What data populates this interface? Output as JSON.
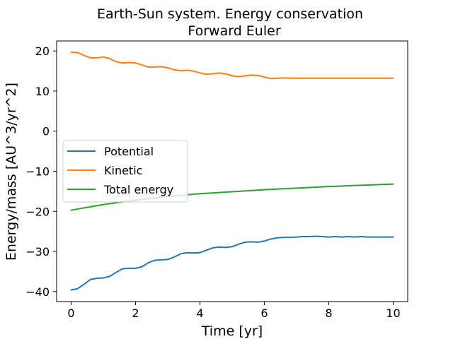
{
  "chart_data": {
    "type": "line",
    "title": "Earth-Sun system. Energy conservation",
    "subtitle": "Forward Euler",
    "xlabel": "Time [yr]",
    "ylabel": "Energy/mass [AU^3/yr^2]",
    "xlim": [
      -0.45,
      10.45
    ],
    "ylim": [
      -42.5,
      22.5
    ],
    "xticks": [
      0,
      2,
      4,
      6,
      8,
      10
    ],
    "xtick_labels": [
      "0",
      "2",
      "4",
      "6",
      "8",
      "10"
    ],
    "yticks": [
      20,
      10,
      0,
      -10,
      -20,
      -30,
      -40
    ],
    "ytick_labels": [
      "20",
      "10",
      "0",
      "−10",
      "−20",
      "−30",
      "−40"
    ],
    "grid": false,
    "legend_position": "center-left",
    "series": [
      {
        "name": "Potential",
        "color": "#1f77b4",
        "x": [
          0,
          0.2,
          0.4,
          0.6,
          0.8,
          1.0,
          1.2,
          1.4,
          1.6,
          1.8,
          2.0,
          2.2,
          2.4,
          2.6,
          2.8,
          3.0,
          3.2,
          3.4,
          3.6,
          3.8,
          4.0,
          4.2,
          4.4,
          4.6,
          4.8,
          5.0,
          5.2,
          5.4,
          5.6,
          5.8,
          6.0,
          6.2,
          6.4,
          6.6,
          6.8,
          7.0,
          7.2,
          7.4,
          7.6,
          7.8,
          8.0,
          8.2,
          8.4,
          8.6,
          8.8,
          9.0,
          9.2,
          9.4,
          9.6,
          9.8,
          10.0
        ],
        "values": [
          -39.6,
          -39.3,
          -38.2,
          -37.0,
          -36.7,
          -36.6,
          -36.2,
          -35.2,
          -34.3,
          -34.2,
          -34.2,
          -33.8,
          -32.8,
          -32.2,
          -32.1,
          -32.0,
          -31.4,
          -30.6,
          -30.3,
          -30.4,
          -30.3,
          -29.7,
          -29.1,
          -28.9,
          -29.0,
          -28.8,
          -28.2,
          -27.7,
          -27.6,
          -27.7,
          -27.4,
          -26.9,
          -26.6,
          -26.5,
          -26.5,
          -26.4,
          -26.3,
          -26.3,
          -26.2,
          -26.3,
          -26.4,
          -26.3,
          -26.4,
          -26.3,
          -26.4,
          -26.3,
          -26.4,
          -26.4,
          -26.4,
          -26.4,
          -26.4
        ]
      },
      {
        "name": "Kinetic",
        "color": "#ff7f0e",
        "x": [
          0,
          0.2,
          0.4,
          0.6,
          0.8,
          1.0,
          1.2,
          1.4,
          1.6,
          1.8,
          2.0,
          2.2,
          2.4,
          2.6,
          2.8,
          3.0,
          3.2,
          3.4,
          3.6,
          3.8,
          4.0,
          4.2,
          4.4,
          4.6,
          4.8,
          5.0,
          5.2,
          5.4,
          5.6,
          5.8,
          6.0,
          6.2,
          6.4,
          6.6,
          6.8,
          7.0,
          7.2,
          7.4,
          7.6,
          7.8,
          8.0,
          8.2,
          8.4,
          8.6,
          8.8,
          9.0,
          9.2,
          9.4,
          9.6,
          9.8,
          10.0
        ],
        "values": [
          19.7,
          19.6,
          18.9,
          18.3,
          18.3,
          18.5,
          18.1,
          17.3,
          17.0,
          17.1,
          17.0,
          16.5,
          16.0,
          16.0,
          16.1,
          15.8,
          15.3,
          15.1,
          15.2,
          15.0,
          14.5,
          14.2,
          14.3,
          14.5,
          14.3,
          13.8,
          13.6,
          13.8,
          14.0,
          13.9,
          13.5,
          13.1,
          13.2,
          13.3,
          13.2,
          13.2,
          13.2,
          13.2,
          13.2,
          13.2,
          13.2,
          13.2,
          13.2,
          13.2,
          13.2,
          13.2,
          13.2,
          13.2,
          13.2,
          13.2,
          13.2
        ]
      },
      {
        "name": "Total energy",
        "color": "#2ca02c",
        "x": [
          0,
          1,
          2,
          3,
          4,
          5,
          6,
          7,
          8,
          9,
          10
        ],
        "values": [
          -19.7,
          -18.3,
          -17.2,
          -16.3,
          -15.6,
          -15.1,
          -14.6,
          -14.2,
          -13.8,
          -13.5,
          -13.2
        ]
      }
    ]
  }
}
